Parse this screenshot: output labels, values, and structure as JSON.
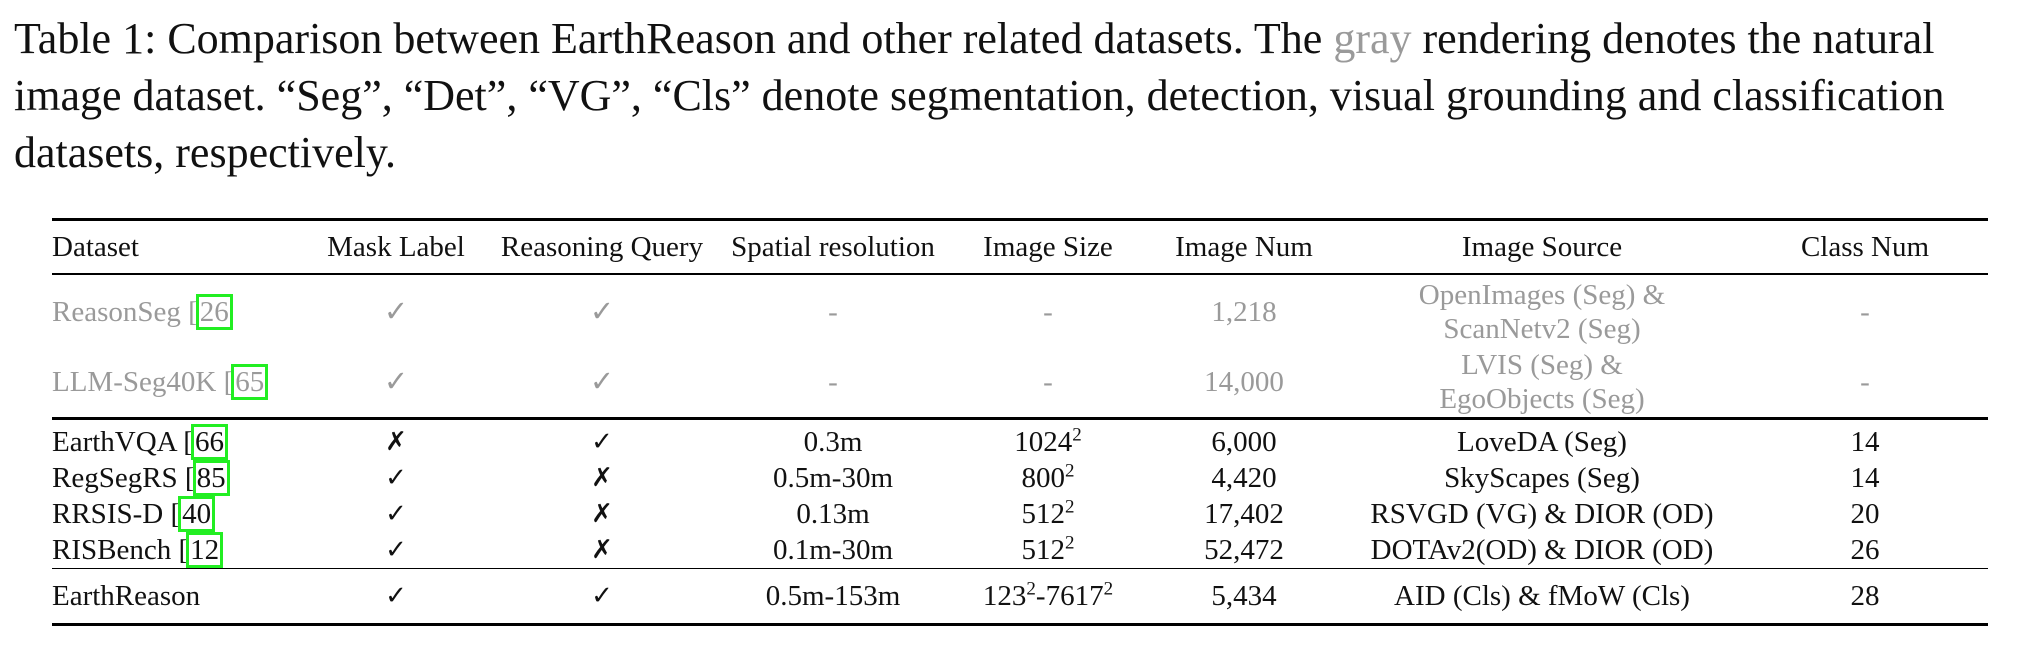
{
  "caption": {
    "part1": "Table 1: Comparison between EarthReason and other related datasets. The ",
    "gray_word": "gray",
    "part2": " rendering denotes the natural image dataset. “Seg”, “Det”, “VG”, “Cls” denote segmentation, detection, visual grounding and classification datasets, respectively."
  },
  "table": {
    "headers": [
      "Dataset",
      "Mask Label",
      "Reasoning Query",
      "Spatial resolution",
      "Image Size",
      "Image Num",
      "Image Source",
      "Class Num"
    ],
    "natural_rows": [
      {
        "name": "ReasonSeg [",
        "ref": "26",
        "mask": "✓",
        "query": "✓",
        "res": "-",
        "size": "-",
        "num": "1,218",
        "source1": "OpenImages (Seg) &",
        "source2": "ScanNetv2 (Seg)",
        "cls": "-"
      },
      {
        "name": "LLM-Seg40K [",
        "ref": "65",
        "mask": "✓",
        "query": "✓",
        "res": "-",
        "size": "-",
        "num": "14,000",
        "source1": "LVIS (Seg) &",
        "source2": "EgoObjects (Seg)",
        "cls": "-"
      }
    ],
    "remote_rows": [
      {
        "name": "EarthVQA [",
        "ref": "66",
        "mask": "✗",
        "query": "✓",
        "res": "0.3m",
        "size_base": "1024",
        "size_exp": "2",
        "num": "6,000",
        "source": "LoveDA (Seg)",
        "cls": "14"
      },
      {
        "name": "RegSegRS [",
        "ref": "85",
        "mask": "✓",
        "query": "✗",
        "res": "0.5m-30m",
        "size_base": "800",
        "size_exp": "2",
        "num": "4,420",
        "source": "SkyScapes (Seg)",
        "cls": "14"
      },
      {
        "name": "RRSIS-D [",
        "ref": "40",
        "mask": "✓",
        "query": "✗",
        "res": "0.13m",
        "size_base": "512",
        "size_exp": "2",
        "num": "17,402",
        "source": "RSVGD (VG) & DIOR (OD)",
        "cls": "20"
      },
      {
        "name": "RISBench [",
        "ref": "12",
        "mask": "✓",
        "query": "✗",
        "res": "0.1m-30m",
        "size_base": "512",
        "size_exp": "2",
        "num": "52,472",
        "source": "DOTAv2(OD) & DIOR (OD)",
        "cls": "26"
      }
    ],
    "final_row": {
      "name": "EarthReason",
      "mask": "✓",
      "query": "✓",
      "res": "0.5m-153m",
      "size_a": "123",
      "size_a_exp": "2",
      "size_sep": "-7617",
      "size_b_exp": "2",
      "num": "5,434",
      "source": "AID (Cls) & fMoW (Cls)",
      "cls": "28"
    }
  }
}
